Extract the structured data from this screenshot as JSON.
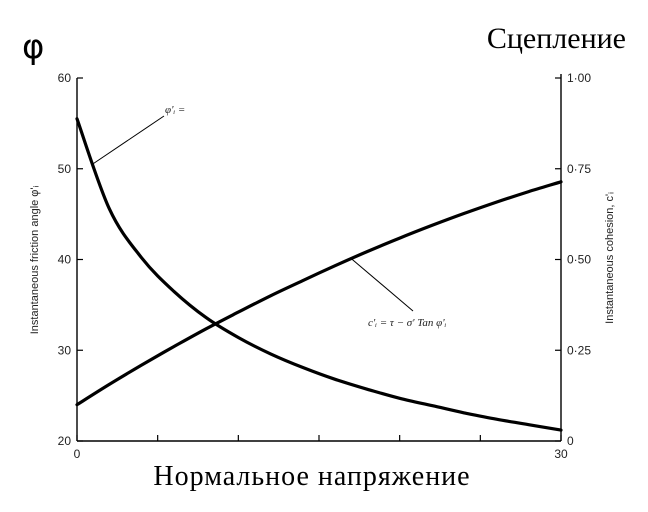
{
  "header": {
    "left_symbol": "φ",
    "right_title": "Сцепление"
  },
  "footer": {
    "x_title": "Нормальное напряжение"
  },
  "chart_data": {
    "type": "line",
    "x": [
      0,
      2,
      4,
      6,
      8,
      10,
      12,
      14,
      16,
      18,
      20,
      22,
      24,
      26,
      28,
      30
    ],
    "x_ticks": [
      "0",
      "30"
    ],
    "xlim": [
      0,
      30
    ],
    "left_axis": {
      "label": "Instantaneous friction angle φ'ᵢ",
      "ticks": [
        20,
        30,
        40,
        50,
        60
      ],
      "ylim": [
        20,
        60
      ]
    },
    "right_axis": {
      "label": "Instantaneous cohesion, c'ᵢ",
      "ticks": [
        "0",
        "0·25",
        "0·50",
        "0·75",
        "1·00"
      ],
      "tick_values": [
        0,
        0.25,
        0.5,
        0.75,
        1.0
      ],
      "ylim": [
        0,
        1.0
      ]
    },
    "series": [
      {
        "axis": "left",
        "values": [
          55.5,
          45.6,
          40.2,
          36.5,
          33.6,
          31.4,
          29.6,
          28.1,
          26.8,
          25.7,
          24.7,
          23.9,
          23.1,
          22.4,
          21.8,
          21.2
        ]
      },
      {
        "axis": "right",
        "values": [
          0.1,
          0.156,
          0.209,
          0.26,
          0.309,
          0.355,
          0.4,
          0.442,
          0.483,
          0.522,
          0.559,
          0.594,
          0.627,
          0.658,
          0.687,
          0.714
        ]
      }
    ],
    "annotations": [
      {
        "text": "φ'ᵢ =",
        "series": 0,
        "anchor_x": 1.0
      },
      {
        "text": "c'ᵢ = τ − σ' Tan φ'ᵢ",
        "series": 1,
        "anchor_x": 17.0
      }
    ]
  }
}
